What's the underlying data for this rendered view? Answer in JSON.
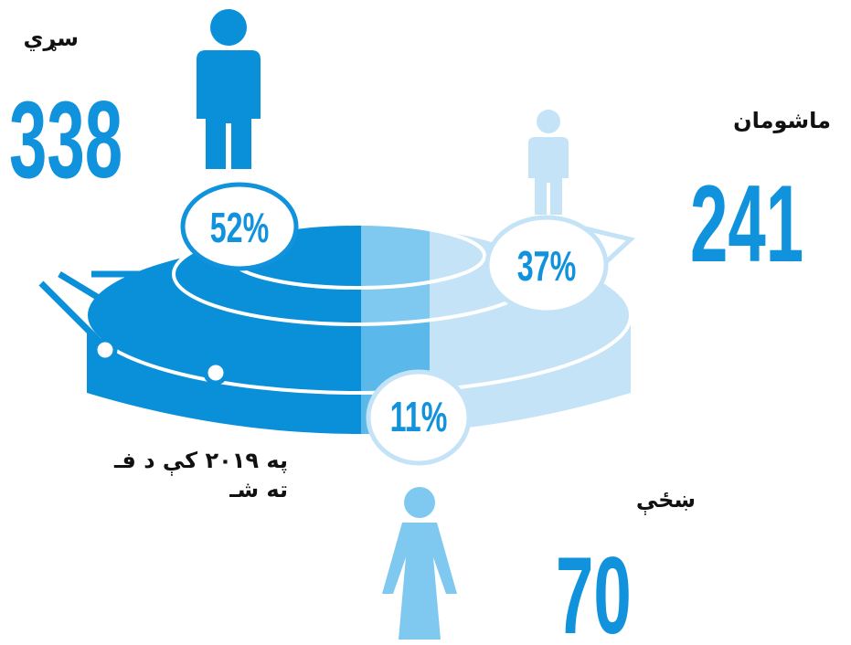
{
  "groups": [
    {
      "label": "سړي",
      "count": "338",
      "percent": "52%"
    },
    {
      "label": "ماشومان",
      "count": "241",
      "percent": "37%"
    },
    {
      "label": "ښځې",
      "count": "70",
      "percent": "11%"
    }
  ],
  "caption": {
    "line1": "په ۲۰۱۹ کې د فـ",
    "line2": "ته شـ"
  }
}
